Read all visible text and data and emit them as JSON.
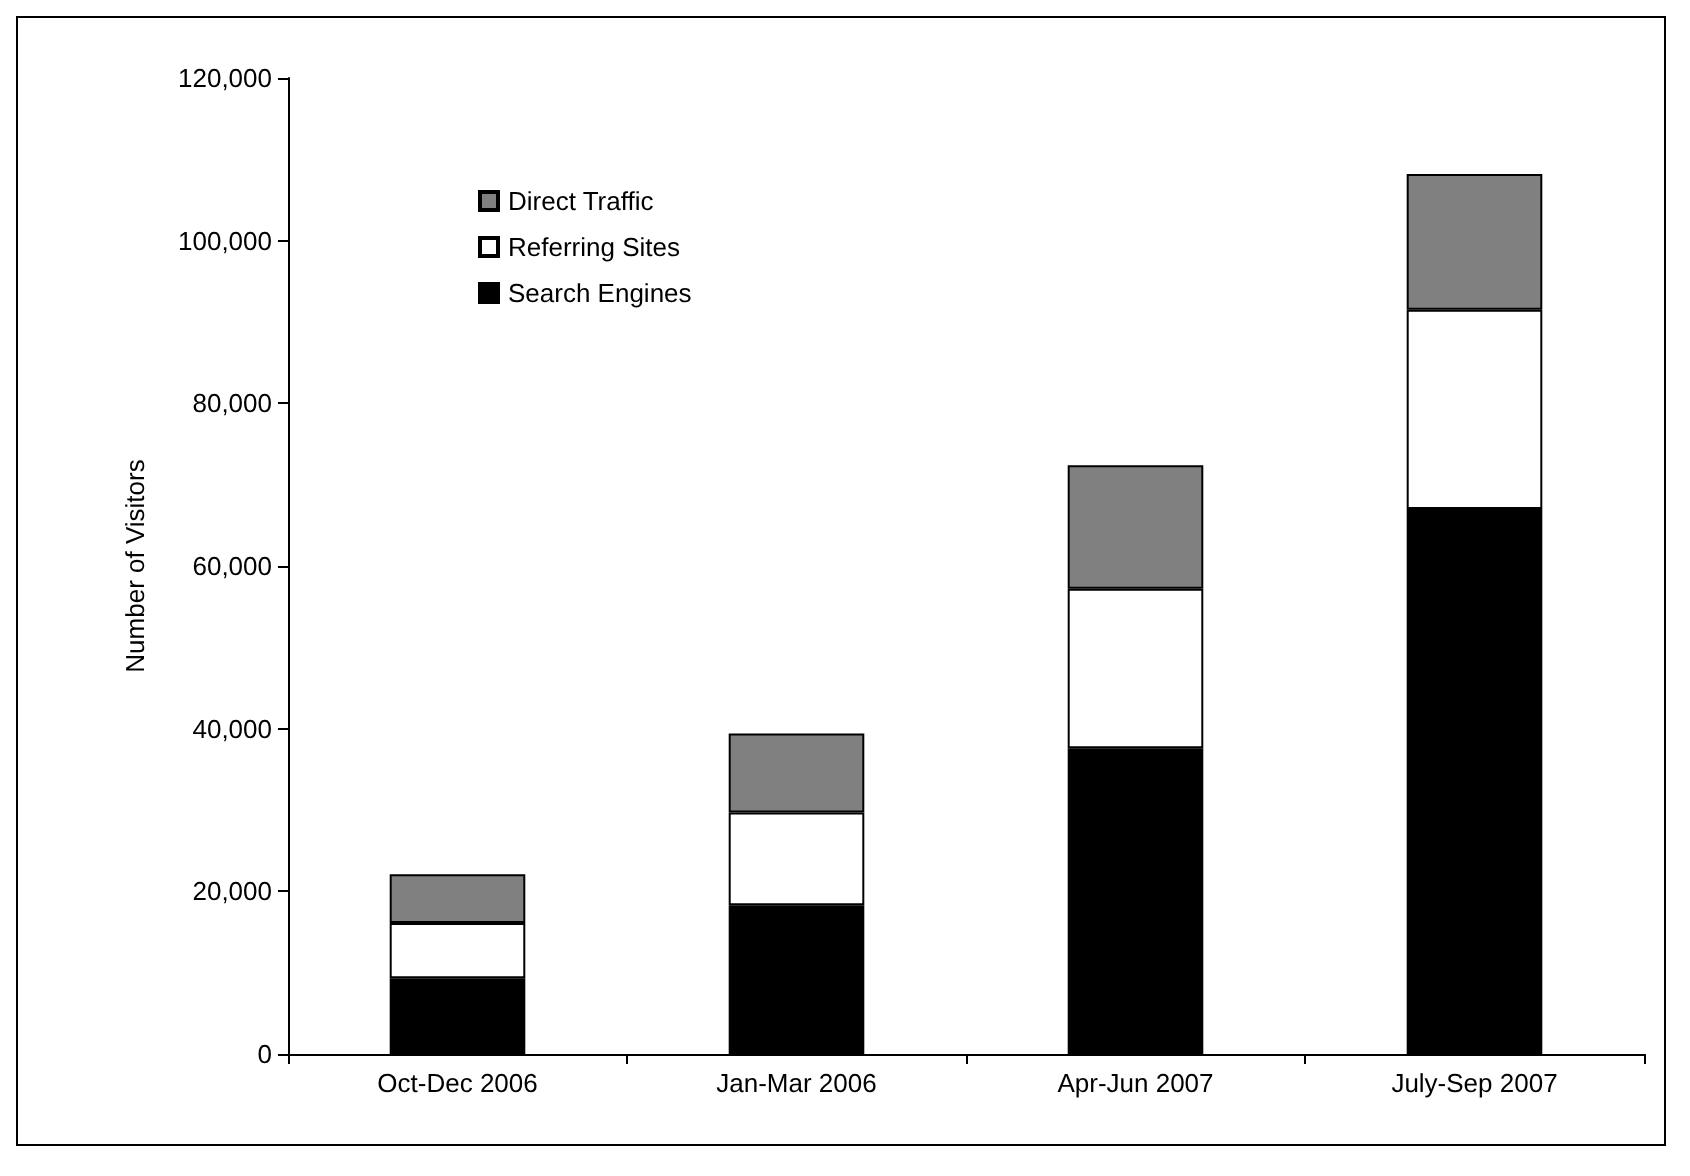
{
  "chart_data": {
    "type": "bar",
    "stacked": true,
    "ylabel": "Number of Visitors",
    "categories": [
      "Oct-Dec 2006",
      "Jan-Mar 2006",
      "Apr-Jun 2007",
      "July-Sep 2007"
    ],
    "series": [
      {
        "name": "Search Engines",
        "color": "#000000",
        "values": [
          9300,
          18300,
          37600,
          67000
        ]
      },
      {
        "name": "Referring Sites",
        "color": "#ffffff",
        "values": [
          6800,
          11400,
          19600,
          24500
        ]
      },
      {
        "name": "Direct Traffic",
        "color": "#808080",
        "values": [
          6000,
          9700,
          15200,
          16700
        ]
      }
    ],
    "ylim": [
      0,
      120000
    ],
    "yticks": [
      0,
      {
        "value": 20000,
        "label": "20,000"
      },
      {
        "value": 40000,
        "label": "40,000"
      },
      {
        "value": 60000,
        "label": "60,000"
      },
      {
        "value": 80000,
        "label": "80,000"
      },
      {
        "value": 100000,
        "label": "100,000"
      },
      {
        "value": 120000,
        "label": "120,000"
      }
    ],
    "grid": false,
    "legend": "top left"
  }
}
